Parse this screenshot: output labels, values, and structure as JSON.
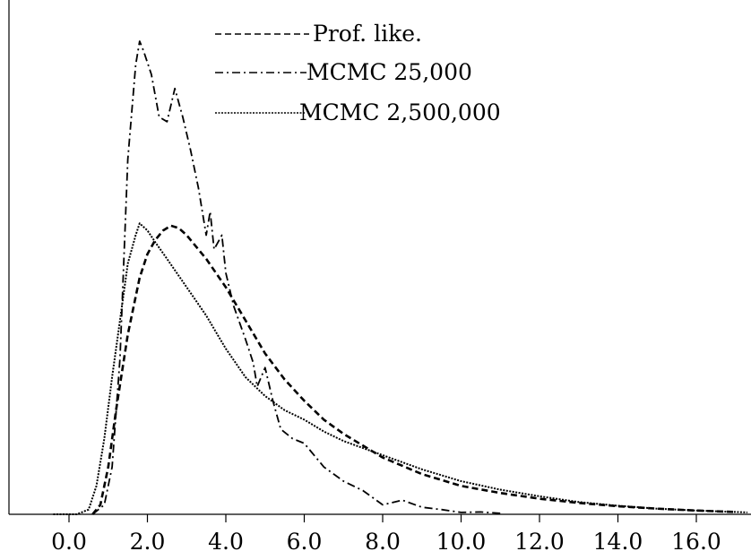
{
  "chart_data": {
    "type": "line",
    "title": "",
    "xlabel": "",
    "ylabel": "",
    "xlim": [
      -1.2,
      18.0
    ],
    "ylim": [
      0,
      1.0
    ],
    "x_ticks": [
      0,
      2,
      4,
      6,
      8,
      10,
      12,
      14,
      16
    ],
    "x_tick_labels": [
      "0.0",
      "2.0",
      "4.0",
      "6.0",
      "8.0",
      "10.0",
      "12.0",
      "14.0",
      "16.0"
    ],
    "y_ticks_shown": false,
    "grid": false,
    "legend": {
      "placement": "top-center",
      "entries": [
        "Prof. like.",
        "MCMC 25,000",
        "MCMC 2,500,000"
      ]
    },
    "series": [
      {
        "name": "Prof. like.",
        "style": "dashed-thick",
        "points": [
          [
            0.6,
            0.0
          ],
          [
            0.8,
            0.02
          ],
          [
            1.0,
            0.1
          ],
          [
            1.2,
            0.22
          ],
          [
            1.5,
            0.38
          ],
          [
            1.8,
            0.5
          ],
          [
            2.0,
            0.55
          ],
          [
            2.2,
            0.58
          ],
          [
            2.4,
            0.6
          ],
          [
            2.6,
            0.61
          ],
          [
            2.8,
            0.605
          ],
          [
            3.0,
            0.59
          ],
          [
            3.5,
            0.54
          ],
          [
            4.0,
            0.48
          ],
          [
            4.5,
            0.41
          ],
          [
            5.0,
            0.34
          ],
          [
            5.5,
            0.285
          ],
          [
            6.0,
            0.24
          ],
          [
            6.5,
            0.2
          ],
          [
            7.0,
            0.17
          ],
          [
            7.5,
            0.145
          ],
          [
            8.0,
            0.12
          ],
          [
            9.0,
            0.085
          ],
          [
            10.0,
            0.06
          ],
          [
            11.0,
            0.045
          ],
          [
            12.0,
            0.033
          ],
          [
            13.0,
            0.024
          ],
          [
            14.0,
            0.017
          ],
          [
            15.0,
            0.012
          ],
          [
            16.0,
            0.008
          ],
          [
            17.0,
            0.005
          ]
        ]
      },
      {
        "name": "MCMC 25,000",
        "style": "dash-dot",
        "points": [
          [
            0.6,
            0.0
          ],
          [
            0.9,
            0.02
          ],
          [
            1.1,
            0.1
          ],
          [
            1.3,
            0.33
          ],
          [
            1.5,
            0.75
          ],
          [
            1.7,
            0.95
          ],
          [
            1.8,
            1.0
          ],
          [
            1.9,
            0.98
          ],
          [
            2.1,
            0.93
          ],
          [
            2.3,
            0.84
          ],
          [
            2.5,
            0.83
          ],
          [
            2.7,
            0.9
          ],
          [
            2.9,
            0.84
          ],
          [
            3.1,
            0.77
          ],
          [
            3.3,
            0.69
          ],
          [
            3.5,
            0.59
          ],
          [
            3.6,
            0.64
          ],
          [
            3.7,
            0.56
          ],
          [
            3.9,
            0.59
          ],
          [
            4.0,
            0.51
          ],
          [
            4.2,
            0.44
          ],
          [
            4.5,
            0.37
          ],
          [
            4.7,
            0.32
          ],
          [
            4.8,
            0.27
          ],
          [
            5.0,
            0.31
          ],
          [
            5.2,
            0.24
          ],
          [
            5.4,
            0.18
          ],
          [
            5.7,
            0.16
          ],
          [
            6.0,
            0.15
          ],
          [
            6.5,
            0.1
          ],
          [
            7.0,
            0.07
          ],
          [
            7.5,
            0.05
          ],
          [
            8.0,
            0.02
          ],
          [
            8.5,
            0.03
          ],
          [
            9.0,
            0.015
          ],
          [
            9.5,
            0.01
          ],
          [
            10.0,
            0.004
          ],
          [
            10.5,
            0.005
          ],
          [
            11.0,
            0.002
          ]
        ]
      },
      {
        "name": "MCMC 2,500,000",
        "style": "dotted",
        "points": [
          [
            -0.4,
            0.0
          ],
          [
            0.2,
            0.0
          ],
          [
            0.5,
            0.01
          ],
          [
            0.7,
            0.06
          ],
          [
            0.9,
            0.16
          ],
          [
            1.1,
            0.29
          ],
          [
            1.3,
            0.41
          ],
          [
            1.5,
            0.53
          ],
          [
            1.7,
            0.59
          ],
          [
            1.8,
            0.615
          ],
          [
            2.0,
            0.6
          ],
          [
            2.2,
            0.575
          ],
          [
            2.5,
            0.54
          ],
          [
            3.0,
            0.48
          ],
          [
            3.5,
            0.42
          ],
          [
            4.0,
            0.35
          ],
          [
            4.5,
            0.29
          ],
          [
            5.0,
            0.25
          ],
          [
            5.5,
            0.22
          ],
          [
            6.0,
            0.2
          ],
          [
            6.5,
            0.175
          ],
          [
            7.0,
            0.155
          ],
          [
            7.5,
            0.14
          ],
          [
            8.0,
            0.125
          ],
          [
            9.0,
            0.095
          ],
          [
            10.0,
            0.07
          ],
          [
            11.0,
            0.052
          ],
          [
            12.0,
            0.038
          ],
          [
            13.0,
            0.026
          ],
          [
            14.0,
            0.018
          ],
          [
            15.0,
            0.012
          ],
          [
            16.0,
            0.008
          ],
          [
            17.0,
            0.005
          ],
          [
            17.3,
            0.004
          ]
        ]
      }
    ]
  }
}
